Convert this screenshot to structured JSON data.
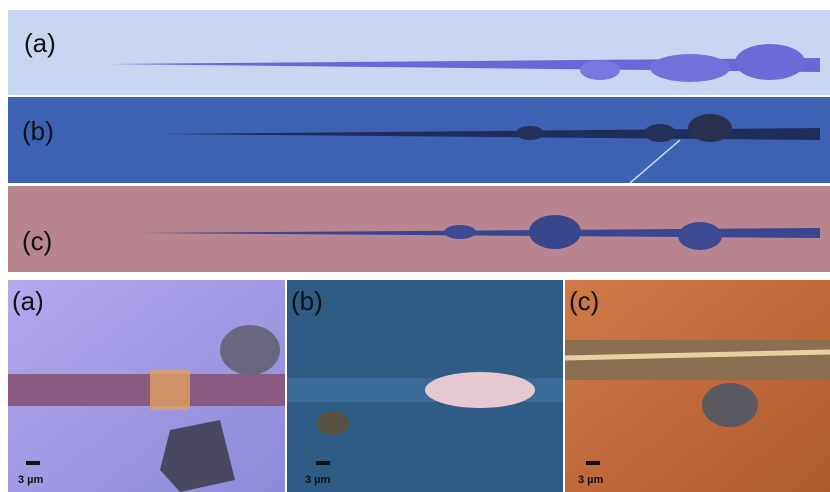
{
  "top_panels": [
    {
      "label": "(a)"
    },
    {
      "label": "(b)"
    },
    {
      "label": "(c)"
    }
  ],
  "bottom_panels": [
    {
      "label": "(a)",
      "scale_bar": "3 µm"
    },
    {
      "label": "(b)",
      "scale_bar": "3 µm"
    },
    {
      "label": "(c)",
      "scale_bar": "3 µm"
    }
  ]
}
